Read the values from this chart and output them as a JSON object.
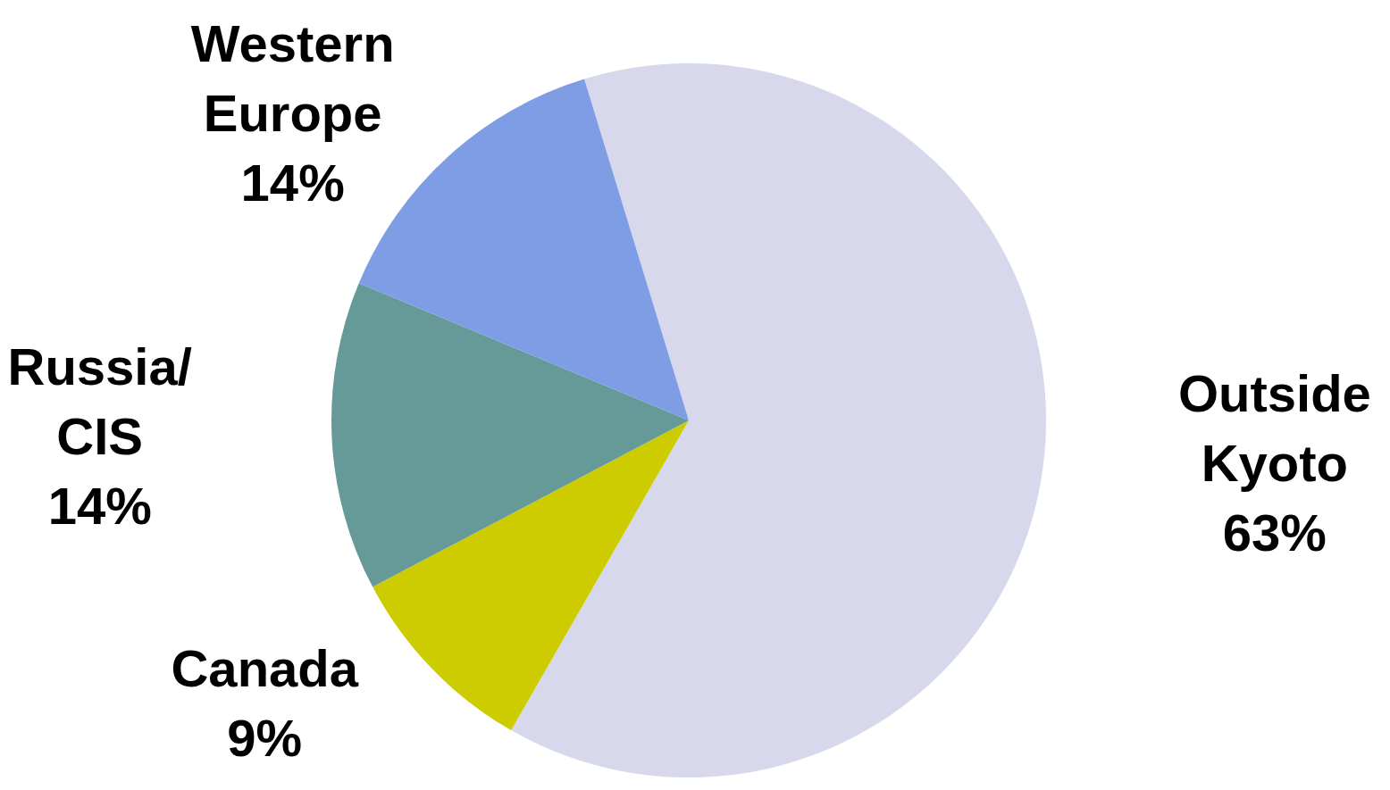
{
  "chart_data": {
    "type": "pie",
    "categories": [
      "Outside Kyoto",
      "Canada",
      "Russia/CIS",
      "Western Europe"
    ],
    "values": [
      63,
      9,
      14,
      14
    ],
    "value_labels": [
      "63%",
      "9%",
      "14%",
      "14%"
    ],
    "colors": [
      "#d7d8eb",
      "#cccc00",
      "#659a98",
      "#7f9de4"
    ]
  }
}
